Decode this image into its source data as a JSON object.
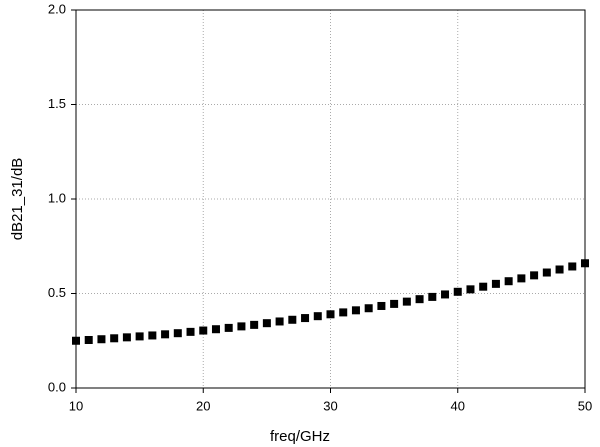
{
  "chart_data": {
    "type": "scatter",
    "x_label": "freq/GHz",
    "y_label": "dB21_31/dB",
    "x": [
      10,
      11,
      12,
      13,
      14,
      15,
      16,
      17,
      18,
      19,
      20,
      21,
      22,
      23,
      24,
      25,
      26,
      27,
      28,
      29,
      30,
      31,
      32,
      33,
      34,
      35,
      36,
      37,
      38,
      39,
      40,
      41,
      42,
      43,
      44,
      45,
      46,
      47,
      48,
      49,
      50
    ],
    "values": [
      0.25,
      0.254,
      0.258,
      0.263,
      0.268,
      0.273,
      0.278,
      0.284,
      0.29,
      0.297,
      0.304,
      0.311,
      0.318,
      0.326,
      0.334,
      0.343,
      0.352,
      0.361,
      0.37,
      0.38,
      0.39,
      0.4,
      0.411,
      0.422,
      0.434,
      0.445,
      0.457,
      0.47,
      0.482,
      0.495,
      0.509,
      0.522,
      0.536,
      0.551,
      0.565,
      0.58,
      0.596,
      0.611,
      0.627,
      0.643,
      0.66
    ],
    "color": "#000000",
    "marker": "square",
    "xlim": [
      10,
      50
    ],
    "xticks": [
      10,
      20,
      30,
      40,
      50
    ],
    "ylim": [
      0,
      2
    ],
    "yticks": [
      {
        "value": 0,
        "label": "0.0"
      },
      0.5,
      {
        "value": 1,
        "label": "1.0"
      },
      1.5,
      {
        "value": 2,
        "label": "2.0"
      }
    ],
    "grid": true
  }
}
